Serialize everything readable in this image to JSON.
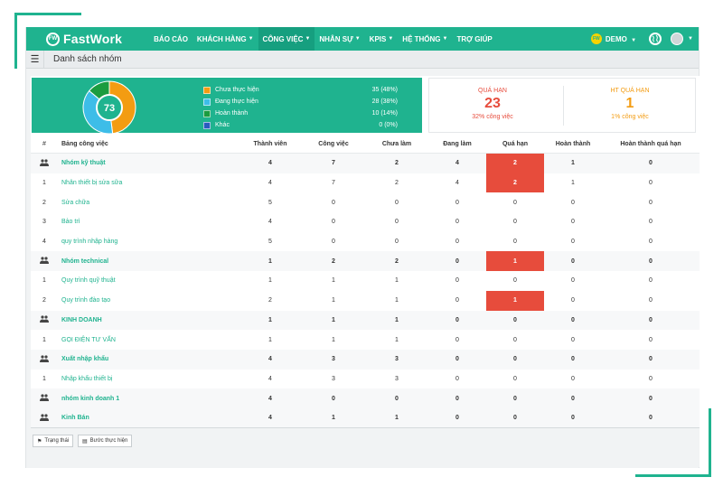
{
  "app": {
    "logo_mark": "FW",
    "logo_text": "FastWork",
    "nav": [
      {
        "label": "BÁO CÁO",
        "caret": ""
      },
      {
        "label": "KHÁCH HÀNG",
        "caret": "▼"
      },
      {
        "label": "CÔNG VIỆC",
        "caret": "▼"
      },
      {
        "label": "NHÂN SỰ",
        "caret": "▼"
      },
      {
        "label": "KPIS",
        "caret": "▼"
      },
      {
        "label": "HỆ THỐNG",
        "caret": "▼"
      },
      {
        "label": "TRỢ GIÚP",
        "caret": ""
      }
    ],
    "active_nav": "CÔNG VIỆC",
    "demo_badge": "FW",
    "demo_label": "DEMO",
    "demo_caret": "▼",
    "user_caret": "▼"
  },
  "page": {
    "title": "Danh sách nhóm",
    "menu_icon": "☰"
  },
  "summary": {
    "total": "73",
    "legend": [
      {
        "label": "Chưa thực hiện",
        "value": "35 (48%)",
        "color": "#f39c12"
      },
      {
        "label": "Đang thực hiện",
        "value": "28 (38%)",
        "color": "#3dbde8"
      },
      {
        "label": "Hoàn thành",
        "value": "10 (14%)",
        "color": "#1b9c3f"
      },
      {
        "label": "Khác",
        "value": "0 (0%)",
        "color": "#2a5bbf"
      }
    ],
    "donut_fractions": [
      0.48,
      0.38,
      0.14,
      0.0
    ],
    "overdue": {
      "label": "QUÁ HẠN",
      "value": "23",
      "sub": "32% công việc"
    },
    "done_overdue": {
      "label": "HT QUÁ HẠN",
      "value": "1",
      "sub": "1% công việc"
    }
  },
  "table": {
    "headers": [
      "#",
      "Bảng công việc",
      "Thành viên",
      "Công việc",
      "Chưa làm",
      "Đang làm",
      "Quá hạn",
      "Hoàn thành",
      "Hoàn thành quá hạn"
    ],
    "rows": [
      {
        "idx": "",
        "name": "Nhóm kỹ thuật",
        "group": true,
        "members": "4",
        "tasks": "7",
        "todo": "2",
        "doing": "4",
        "overdue": "2",
        "done": "1",
        "done_overdue": "0",
        "red": true
      },
      {
        "idx": "1",
        "name": "Nhân thiết bị sửa sữa",
        "group": false,
        "members": "4",
        "tasks": "7",
        "todo": "2",
        "doing": "4",
        "overdue": "2",
        "done": "1",
        "done_overdue": "0",
        "red": true
      },
      {
        "idx": "2",
        "name": "Sửa chữa",
        "group": false,
        "members": "5",
        "tasks": "0",
        "todo": "0",
        "doing": "0",
        "overdue": "0",
        "done": "0",
        "done_overdue": "0",
        "red": false
      },
      {
        "idx": "3",
        "name": "Bảo trì",
        "group": false,
        "members": "4",
        "tasks": "0",
        "todo": "0",
        "doing": "0",
        "overdue": "0",
        "done": "0",
        "done_overdue": "0",
        "red": false
      },
      {
        "idx": "4",
        "name": "quy trình nhập hàng",
        "group": false,
        "members": "5",
        "tasks": "0",
        "todo": "0",
        "doing": "0",
        "overdue": "0",
        "done": "0",
        "done_overdue": "0",
        "red": false
      },
      {
        "idx": "",
        "name": "Nhóm technical",
        "group": true,
        "members": "1",
        "tasks": "2",
        "todo": "2",
        "doing": "0",
        "overdue": "1",
        "done": "0",
        "done_overdue": "0",
        "red": true
      },
      {
        "idx": "1",
        "name": "Quy trình quỹ thuật",
        "group": false,
        "members": "1",
        "tasks": "1",
        "todo": "1",
        "doing": "0",
        "overdue": "0",
        "done": "0",
        "done_overdue": "0",
        "red": false
      },
      {
        "idx": "2",
        "name": "Quy trình đào tạo",
        "group": false,
        "members": "2",
        "tasks": "1",
        "todo": "1",
        "doing": "0",
        "overdue": "1",
        "done": "0",
        "done_overdue": "0",
        "red": true
      },
      {
        "idx": "",
        "name": "KINH DOANH",
        "group": true,
        "members": "1",
        "tasks": "1",
        "todo": "1",
        "doing": "0",
        "overdue": "0",
        "done": "0",
        "done_overdue": "0",
        "red": false
      },
      {
        "idx": "1",
        "name": "GỌI ĐIỆN TƯ VẤN",
        "group": false,
        "members": "1",
        "tasks": "1",
        "todo": "1",
        "doing": "0",
        "overdue": "0",
        "done": "0",
        "done_overdue": "0",
        "red": false
      },
      {
        "idx": "",
        "name": "Xuất nhập khẩu",
        "group": true,
        "members": "4",
        "tasks": "3",
        "todo": "3",
        "doing": "0",
        "overdue": "0",
        "done": "0",
        "done_overdue": "0",
        "red": false
      },
      {
        "idx": "1",
        "name": "Nhập khẩu thiết bị",
        "group": false,
        "members": "4",
        "tasks": "3",
        "todo": "3",
        "doing": "0",
        "overdue": "0",
        "done": "0",
        "done_overdue": "0",
        "red": false
      },
      {
        "idx": "",
        "name": "nhóm kinh doanh 1",
        "group": true,
        "members": "4",
        "tasks": "0",
        "todo": "0",
        "doing": "0",
        "overdue": "0",
        "done": "0",
        "done_overdue": "0",
        "red": false
      },
      {
        "idx": "",
        "name": "Kinh Bán",
        "group": true,
        "members": "4",
        "tasks": "1",
        "todo": "1",
        "doing": "0",
        "overdue": "0",
        "done": "0",
        "done_overdue": "0",
        "red": false
      }
    ]
  },
  "footer": {
    "status_icon": "⚑",
    "status_label": "Trạng thái",
    "step_icon": "▤",
    "step_label": "Bước thực hiện"
  },
  "colors": {
    "brand": "#1fb38f",
    "danger": "#e74c3c",
    "warning": "#f39c12"
  }
}
